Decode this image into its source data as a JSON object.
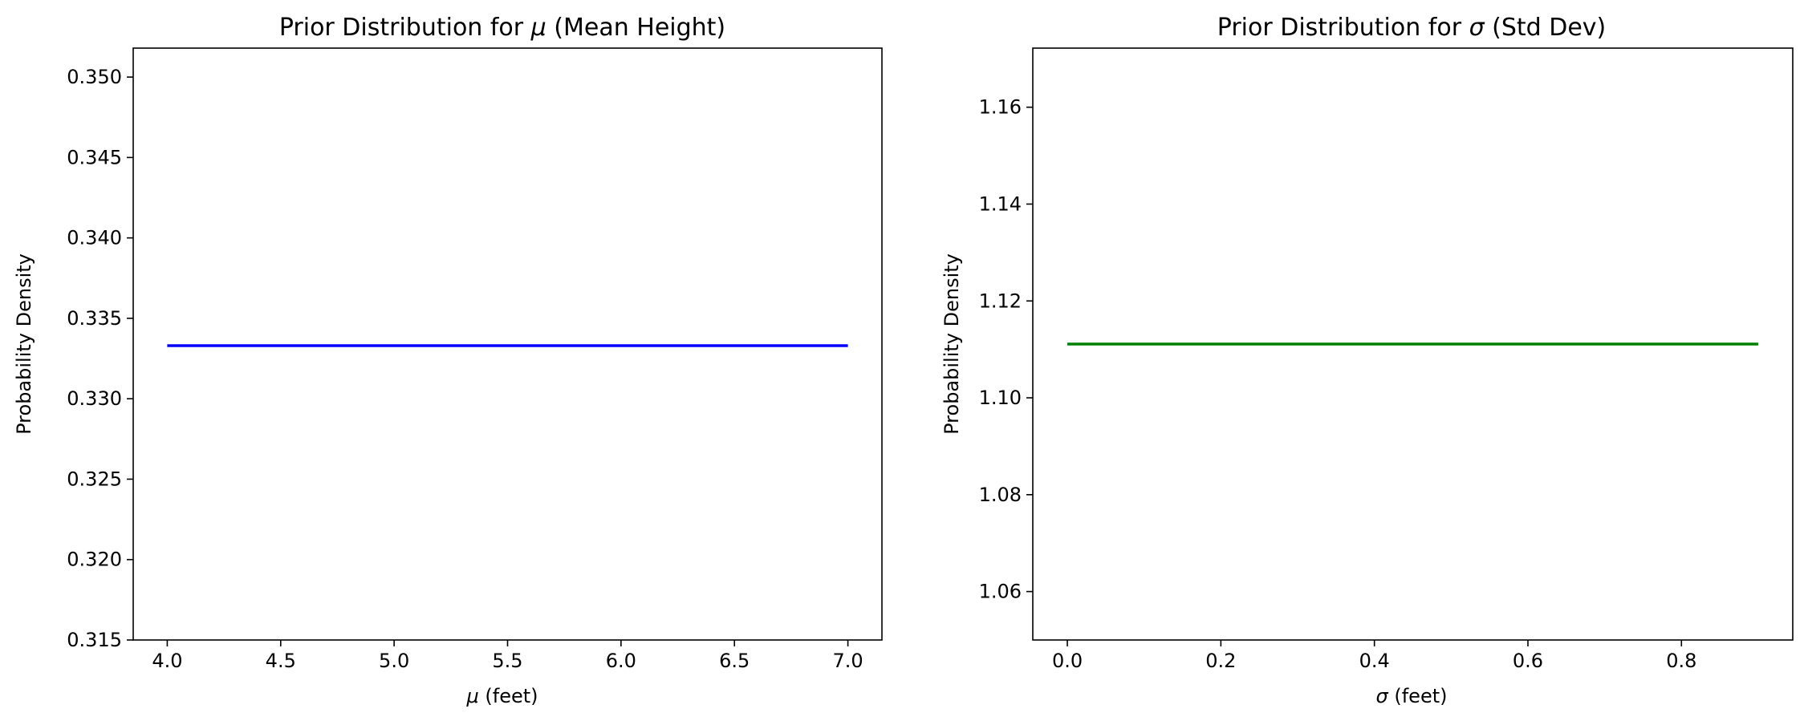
{
  "chart_data": [
    {
      "type": "line",
      "title_prefix": "Prior Distribution for ",
      "title_symbol": "μ",
      "title_suffix": " (Mean Height)",
      "xlabel_symbol": "μ",
      "xlabel_suffix": " (feet)",
      "ylabel": "Probability Density",
      "xlim": [
        3.85,
        7.15
      ],
      "ylim": [
        0.315,
        0.3518
      ],
      "xticks": [
        4.0,
        4.5,
        5.0,
        5.5,
        6.0,
        6.5,
        7.0
      ],
      "xtick_labels": [
        "4.0",
        "4.5",
        "5.0",
        "5.5",
        "6.0",
        "6.5",
        "7.0"
      ],
      "yticks": [
        0.315,
        0.32,
        0.325,
        0.33,
        0.335,
        0.34,
        0.345,
        0.35
      ],
      "ytick_labels": [
        "0.315",
        "0.320",
        "0.325",
        "0.330",
        "0.335",
        "0.340",
        "0.345",
        "0.350"
      ],
      "grid": false,
      "color": "#0000ff",
      "series": [
        {
          "x": [
            4.0,
            7.0
          ],
          "y": [
            0.3333,
            0.3333
          ]
        }
      ]
    },
    {
      "type": "line",
      "title_prefix": "Prior Distribution for ",
      "title_symbol": "σ",
      "title_suffix": " (Std Dev)",
      "xlabel_symbol": "σ",
      "xlabel_suffix": " (feet)",
      "ylabel": "Probability Density",
      "xlim": [
        -0.045,
        0.945
      ],
      "ylim": [
        1.05,
        1.1722
      ],
      "xticks": [
        0.0,
        0.2,
        0.4,
        0.6,
        0.8
      ],
      "xtick_labels": [
        "0.0",
        "0.2",
        "0.4",
        "0.6",
        "0.8"
      ],
      "yticks": [
        1.06,
        1.08,
        1.1,
        1.12,
        1.14,
        1.16
      ],
      "ytick_labels": [
        "1.06",
        "1.08",
        "1.10",
        "1.12",
        "1.14",
        "1.16"
      ],
      "grid": false,
      "color": "#008000",
      "series": [
        {
          "x": [
            0.0,
            0.9
          ],
          "y": [
            1.1111,
            1.1111
          ]
        }
      ]
    }
  ]
}
